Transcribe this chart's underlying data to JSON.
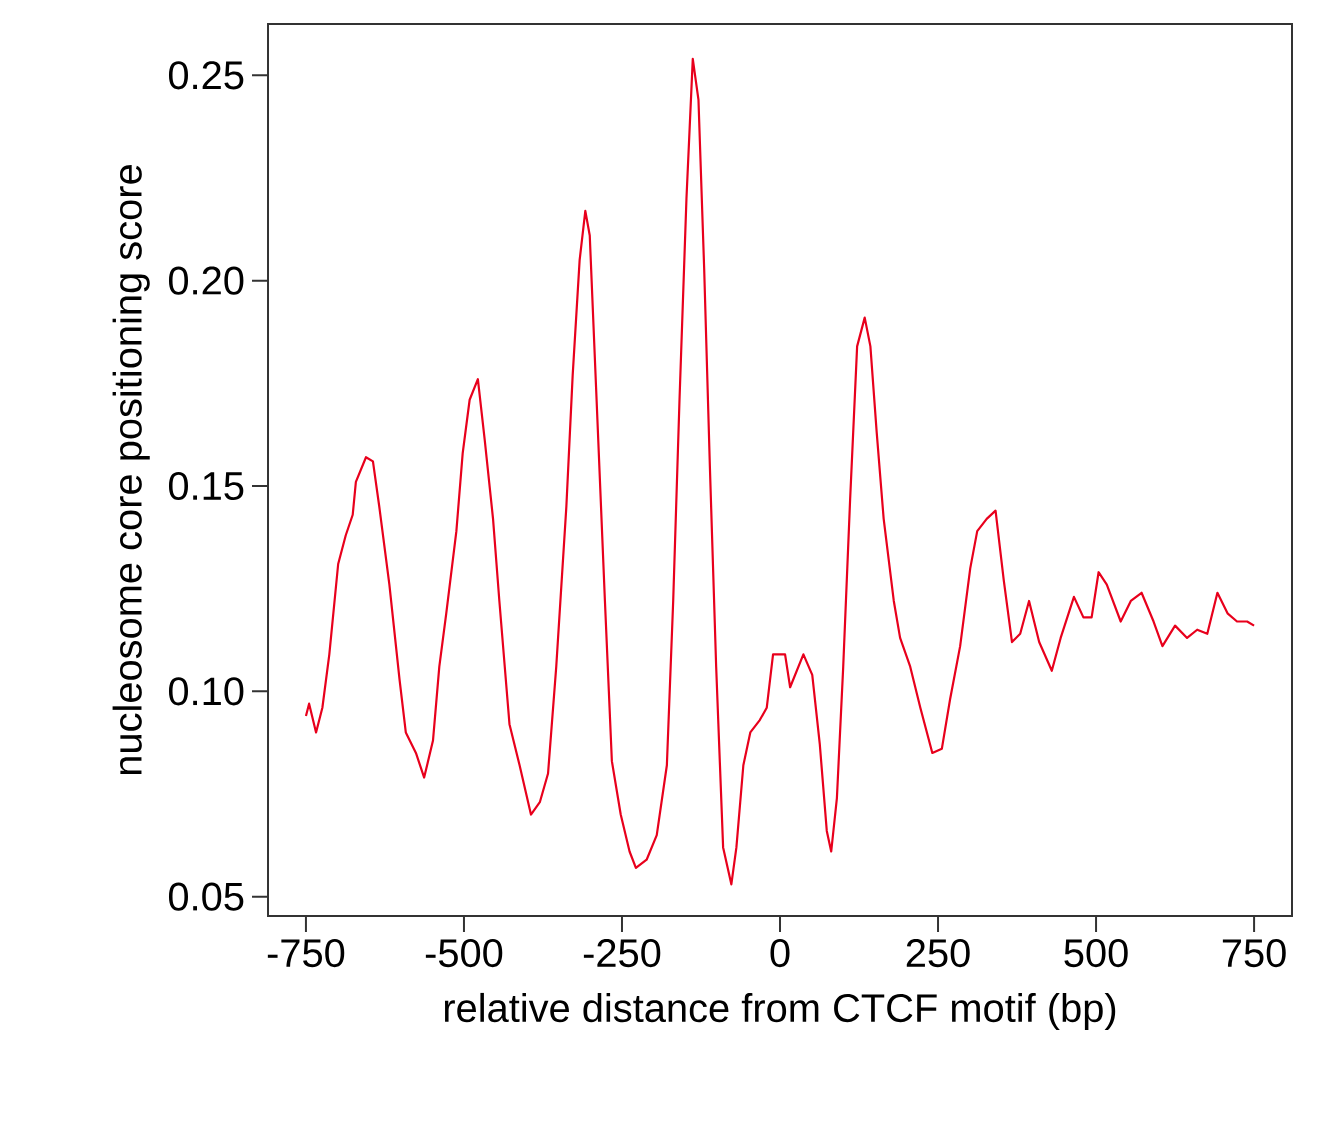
{
  "chart_data": {
    "type": "line",
    "xlabel": "relative distance from CTCF motif (bp)",
    "ylabel": "nucleosome core positioning score",
    "xlim": [
      -810,
      810
    ],
    "ylim": [
      0.0453,
      0.2625
    ],
    "xticks": [
      -750,
      -500,
      -250,
      0,
      250,
      500,
      750
    ],
    "yticks": [
      {
        "value": 0.05,
        "label": "0.05"
      },
      {
        "value": 0.1,
        "label": "0.10"
      },
      {
        "value": 0.15,
        "label": "0.15"
      },
      {
        "value": 0.2,
        "label": "0.20"
      },
      {
        "value": 0.25,
        "label": "0.25"
      }
    ],
    "color": "#e8001c",
    "x": [
      -750,
      -745,
      -734,
      -724,
      -713,
      -699,
      -687,
      -676,
      -671,
      -655,
      -644,
      -634,
      -618,
      -602,
      -592,
      -576,
      -563,
      -549,
      -539,
      -528,
      -512,
      -502,
      -491,
      -478,
      -467,
      -454,
      -444,
      -428,
      -412,
      -394,
      -380,
      -367,
      -354,
      -338,
      -328,
      -317,
      -308,
      -301,
      -291,
      -277,
      -266,
      -252,
      -238,
      -228,
      -211,
      -195,
      -179,
      -169,
      -159,
      -148,
      -138,
      -129,
      -120,
      -111,
      -101,
      -90,
      -77,
      -69,
      -58,
      -47,
      -32,
      -21,
      -11,
      8,
      16,
      37,
      51,
      63,
      74,
      81,
      90,
      100,
      111,
      122,
      134,
      143,
      153,
      164,
      180,
      190,
      206,
      222,
      241,
      256,
      269,
      285,
      301,
      312,
      327,
      341,
      354,
      367,
      380,
      394,
      410,
      430,
      444,
      465,
      480,
      493,
      504,
      517,
      539,
      555,
      572,
      591,
      605,
      625,
      644,
      660,
      676,
      692,
      708,
      723,
      739,
      750
    ],
    "values": [
      0.094,
      0.097,
      0.09,
      0.096,
      0.109,
      0.131,
      0.138,
      0.143,
      0.151,
      0.157,
      0.156,
      0.145,
      0.126,
      0.103,
      0.09,
      0.085,
      0.079,
      0.088,
      0.106,
      0.119,
      0.139,
      0.158,
      0.171,
      0.176,
      0.161,
      0.142,
      0.122,
      0.092,
      0.082,
      0.07,
      0.073,
      0.08,
      0.106,
      0.145,
      0.177,
      0.205,
      0.217,
      0.211,
      0.174,
      0.122,
      0.083,
      0.07,
      0.061,
      0.057,
      0.059,
      0.065,
      0.082,
      0.122,
      0.171,
      0.22,
      0.254,
      0.244,
      0.203,
      0.155,
      0.106,
      0.062,
      0.053,
      0.062,
      0.082,
      0.09,
      0.093,
      0.096,
      0.109,
      0.109,
      0.101,
      0.109,
      0.104,
      0.087,
      0.066,
      0.061,
      0.074,
      0.106,
      0.147,
      0.184,
      0.191,
      0.184,
      0.163,
      0.142,
      0.122,
      0.113,
      0.106,
      0.096,
      0.085,
      0.086,
      0.098,
      0.111,
      0.13,
      0.139,
      0.142,
      0.144,
      0.127,
      0.112,
      0.114,
      0.122,
      0.112,
      0.105,
      0.113,
      0.123,
      0.118,
      0.118,
      0.129,
      0.126,
      0.117,
      0.122,
      0.124,
      0.117,
      0.111,
      0.116,
      0.113,
      0.115,
      0.114,
      0.124,
      0.119,
      0.117,
      0.117,
      0.116
    ]
  }
}
